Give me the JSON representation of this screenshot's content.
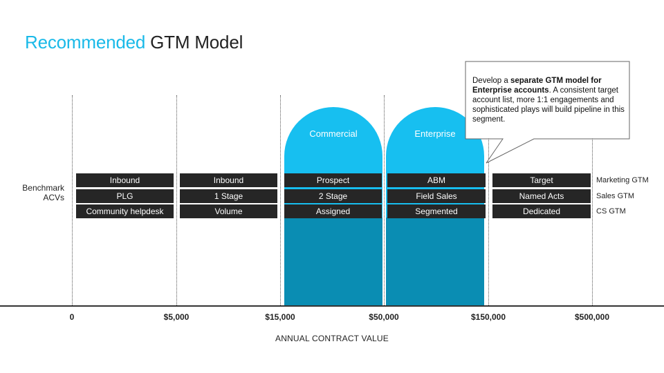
{
  "title": {
    "accent": "Recommended",
    "rest": "GTM Model"
  },
  "benchmark_label": {
    "line1": "Benchmark",
    "line2": "ACVs"
  },
  "segments": {
    "commercial": "Commercial",
    "enterprise": "Enterprise"
  },
  "rows": [
    {
      "label": "Marketing GTM",
      "cells": [
        "Inbound",
        "Inbound",
        "Prospect",
        "ABM",
        "Target"
      ]
    },
    {
      "label": "Sales GTM",
      "cells": [
        "PLG",
        "1 Stage",
        "2 Stage",
        "Field Sales",
        "Named Acts"
      ]
    },
    {
      "label": "CS GTM",
      "cells": [
        "Community helpdesk",
        "Volume",
        "Assigned",
        "Segmented",
        "Dedicated"
      ]
    }
  ],
  "axis": {
    "ticks": [
      "0",
      "$5,000",
      "$15,000",
      "$50,000",
      "$150,000",
      "$500,000"
    ],
    "title": "ANNUAL CONTRACT VALUE"
  },
  "callout": {
    "pre": "Develop a ",
    "bold": "separate GTM model for Enterprise accounts",
    "post": ". A consistent target account list, more 1:1 engagements and sophisticated plays will build pipeline in this segment."
  },
  "colors": {
    "accent": "#19b9e8",
    "arch_top": "#17bff0",
    "arch_bottom": "#0a8db3",
    "cell_bg": "#262626"
  }
}
